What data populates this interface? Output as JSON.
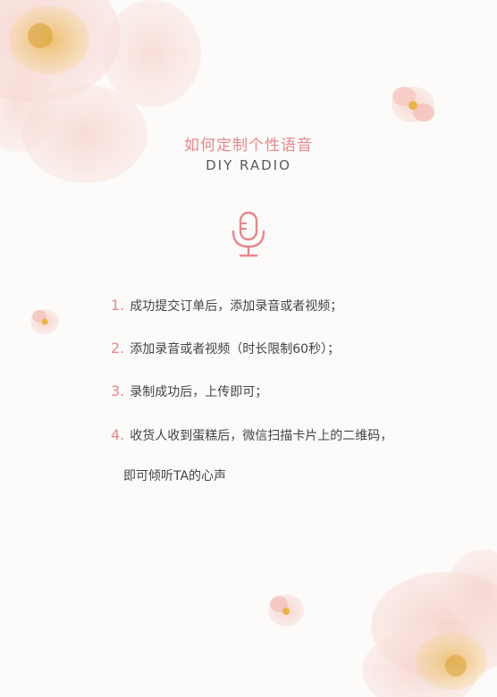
{
  "header": {
    "title_cn": "如何定制个性语音",
    "title_en": "DIY RADIO"
  },
  "icon": "microphone-icon",
  "steps": [
    {
      "num": "1.",
      "text": "成功提交订单后，添加录音或者视频；"
    },
    {
      "num": "2.",
      "text": "添加录音或者视频（时长限制60秒）；"
    },
    {
      "num": "3.",
      "text": "录制成功后，上传即可；"
    },
    {
      "num": "4.",
      "text": "收货人收到蛋糕后，微信扫描卡片上的二维码，"
    }
  ],
  "continuation": "即可倾听TA的心声",
  "colors": {
    "accent": "#e8868b",
    "text": "#444444",
    "background": "#fcfbfa",
    "petal": "#f4c2bd"
  }
}
